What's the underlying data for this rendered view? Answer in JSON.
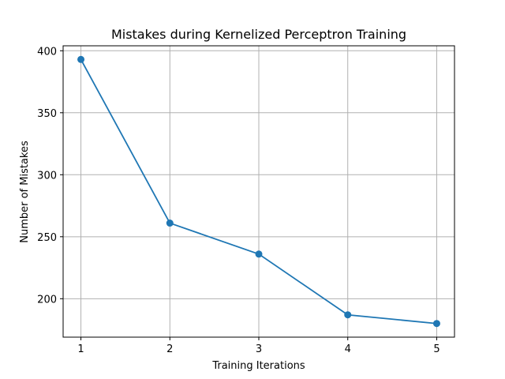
{
  "chart_data": {
    "type": "line",
    "title": "Mistakes during Kernelized Perceptron Training",
    "xlabel": "Training Iterations",
    "ylabel": "Number of Mistakes",
    "x": [
      1,
      2,
      3,
      4,
      5
    ],
    "series": [
      {
        "values": [
          393,
          261,
          236,
          187,
          180
        ],
        "color": "#1f77b4",
        "marker": "circle"
      }
    ],
    "xticks": [
      1,
      2,
      3,
      4,
      5
    ],
    "yticks": [
      200,
      250,
      300,
      350,
      400
    ],
    "xlim": [
      0.8,
      5.2
    ],
    "ylim": [
      169,
      404
    ],
    "grid": true
  }
}
